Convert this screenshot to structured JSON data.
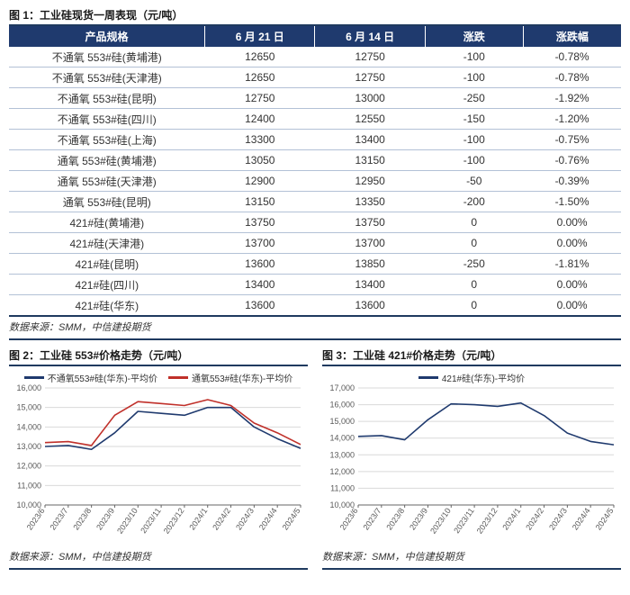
{
  "figure1": {
    "title": "图 1：工业硅现货一周表现（元/吨）",
    "columns": [
      "产品规格",
      "6 月 21 日",
      "6 月 14 日",
      "涨跌",
      "涨跌幅"
    ],
    "rows": [
      [
        "不通氧 553#硅(黄埔港)",
        "12650",
        "12750",
        "-100",
        "-0.78%"
      ],
      [
        "不通氧 553#硅(天津港)",
        "12650",
        "12750",
        "-100",
        "-0.78%"
      ],
      [
        "不通氧 553#硅(昆明)",
        "12750",
        "13000",
        "-250",
        "-1.92%"
      ],
      [
        "不通氧 553#硅(四川)",
        "12400",
        "12550",
        "-150",
        "-1.20%"
      ],
      [
        "不通氧 553#硅(上海)",
        "13300",
        "13400",
        "-100",
        "-0.75%"
      ],
      [
        "通氧 553#硅(黄埔港)",
        "13050",
        "13150",
        "-100",
        "-0.76%"
      ],
      [
        "通氧 553#硅(天津港)",
        "12900",
        "12950",
        "-50",
        "-0.39%"
      ],
      [
        "通氧 553#硅(昆明)",
        "13150",
        "13350",
        "-200",
        "-1.50%"
      ],
      [
        "421#硅(黄埔港)",
        "13750",
        "13750",
        "0",
        "0.00%"
      ],
      [
        "421#硅(天津港)",
        "13700",
        "13700",
        "0",
        "0.00%"
      ],
      [
        "421#硅(昆明)",
        "13600",
        "13850",
        "-250",
        "-1.81%"
      ],
      [
        "421#硅(四川)",
        "13400",
        "13400",
        "0",
        "0.00%"
      ],
      [
        "421#硅(华东)",
        "13600",
        "13600",
        "0",
        "0.00%"
      ]
    ],
    "source": "数据来源：SMM，中信建投期货"
  },
  "figure2": {
    "title": "图 2：工业硅 553#价格走势（元/吨）",
    "source": "数据来源：SMM，中信建投期货",
    "chart": {
      "type": "line",
      "background_color": "#ffffff",
      "grid_color": "#d9d9d9",
      "axis_color": "#666666",
      "text_color": "#595959",
      "label_fontsize": 9,
      "xlim": [
        0,
        11
      ],
      "ylim": [
        10000,
        16000
      ],
      "ytick_step": 1000,
      "yticks": [
        10000,
        11000,
        12000,
        13000,
        14000,
        15000,
        16000
      ],
      "xticks": [
        "2023/6",
        "2023/7",
        "2023/8",
        "2023/9",
        "2023/10",
        "2023/11",
        "2023/12",
        "2024/1",
        "2024/2",
        "2024/3",
        "2024/4",
        "2024/5"
      ],
      "line_width": 1.6,
      "series": [
        {
          "name": "不通氧553#硅(华东)-平均价",
          "color": "#1f3a6e",
          "values": [
            13000,
            13050,
            12850,
            13700,
            14800,
            14700,
            14600,
            15000,
            15000,
            14000,
            13400,
            12900
          ]
        },
        {
          "name": "通氧553#硅(华东)-平均价",
          "color": "#c0302a",
          "values": [
            13200,
            13250,
            13050,
            14600,
            15300,
            15200,
            15100,
            15400,
            15100,
            14200,
            13700,
            13100
          ]
        }
      ]
    }
  },
  "figure3": {
    "title": "图 3：工业硅 421#价格走势（元/吨）",
    "source": "数据来源：SMM，中信建投期货",
    "chart": {
      "type": "line",
      "background_color": "#ffffff",
      "grid_color": "#d9d9d9",
      "axis_color": "#666666",
      "text_color": "#595959",
      "label_fontsize": 9,
      "xlim": [
        0,
        11
      ],
      "ylim": [
        10000,
        17000
      ],
      "ytick_step": 1000,
      "yticks": [
        10000,
        11000,
        12000,
        13000,
        14000,
        15000,
        16000,
        17000
      ],
      "xticks": [
        "2023/6",
        "2023/7",
        "2023/8",
        "2023/9",
        "2023/10",
        "2023/11",
        "2023/12",
        "2024/1",
        "2024/2",
        "2024/3",
        "2024/4",
        "2024/5"
      ],
      "line_width": 1.6,
      "series": [
        {
          "name": "421#硅(华东)-平均价",
          "color": "#1f3a6e",
          "values": [
            14100,
            14150,
            13900,
            15100,
            16050,
            16000,
            15900,
            16100,
            15350,
            14300,
            13800,
            13600
          ]
        }
      ]
    }
  }
}
